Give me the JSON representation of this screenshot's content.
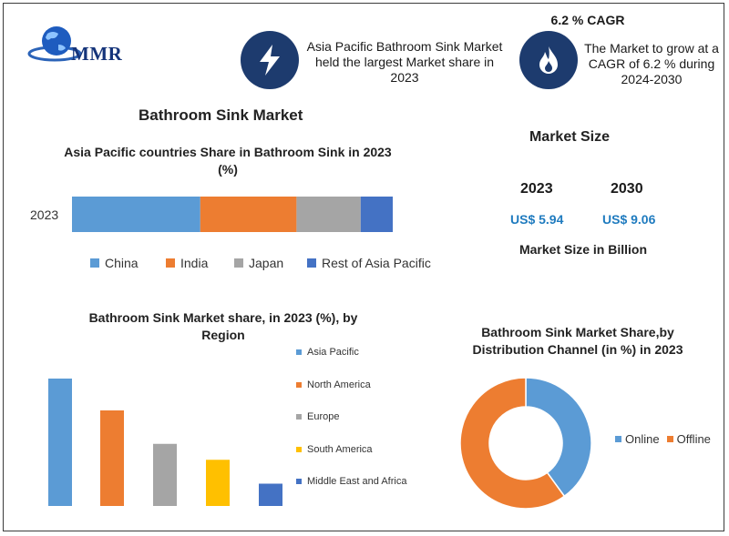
{
  "brand": {
    "logo_text": "MMR"
  },
  "callouts": {
    "largest_share": "Asia Pacific Bathroom Sink Market held the largest Market share in 2023",
    "cagr_title": "6.2 % CAGR",
    "cagr_text": "The Market to grow at a CAGR of 6.2 % during 2024-2030",
    "icon_left": "lightning-bolt-icon",
    "icon_right": "flame-icon"
  },
  "colors": {
    "blue": "#5b9bd5",
    "orange": "#ed7d31",
    "gray": "#a5a5a5",
    "yellow": "#ffc000",
    "dark_blue": "#4472c4",
    "icon_bg": "#1d3b6e",
    "accent_text": "#1f7bbf"
  },
  "main_title": "Bathroom Sink Market",
  "market_size": {
    "title": "Market Size",
    "years": [
      "2023",
      "2030"
    ],
    "values": [
      "US$ 5.94",
      "US$ 9.06"
    ],
    "unit_label": "Market Size in Billion"
  },
  "chart_data": [
    {
      "type": "bar",
      "orientation": "horizontal-stacked",
      "title": "Asia Pacific countries Share in Bathroom Sink in 2023 (%)",
      "categories": [
        "2023"
      ],
      "series": [
        {
          "name": "China",
          "values": [
            40
          ]
        },
        {
          "name": "India",
          "values": [
            30
          ]
        },
        {
          "name": "Japan",
          "values": [
            20
          ]
        },
        {
          "name": "Rest of Asia Pacific",
          "values": [
            10
          ]
        }
      ],
      "legend": "bottom",
      "grid": false
    },
    {
      "type": "bar",
      "title": "Bathroom Sink Market share, in 2023 (%), by Region",
      "categories": [
        "Asia Pacific",
        "North America",
        "Europe",
        "South America",
        "Middle East and Africa"
      ],
      "values": [
        40,
        30,
        19.5,
        14.5,
        7
      ],
      "legend": "right",
      "grid": false
    },
    {
      "type": "pie",
      "style": "donut",
      "title": "Bathroom Sink Market Share,by Distribution Channel (in %) in 2023",
      "categories": [
        "Online",
        "Offline"
      ],
      "values": [
        40,
        60
      ],
      "legend": "right"
    }
  ]
}
